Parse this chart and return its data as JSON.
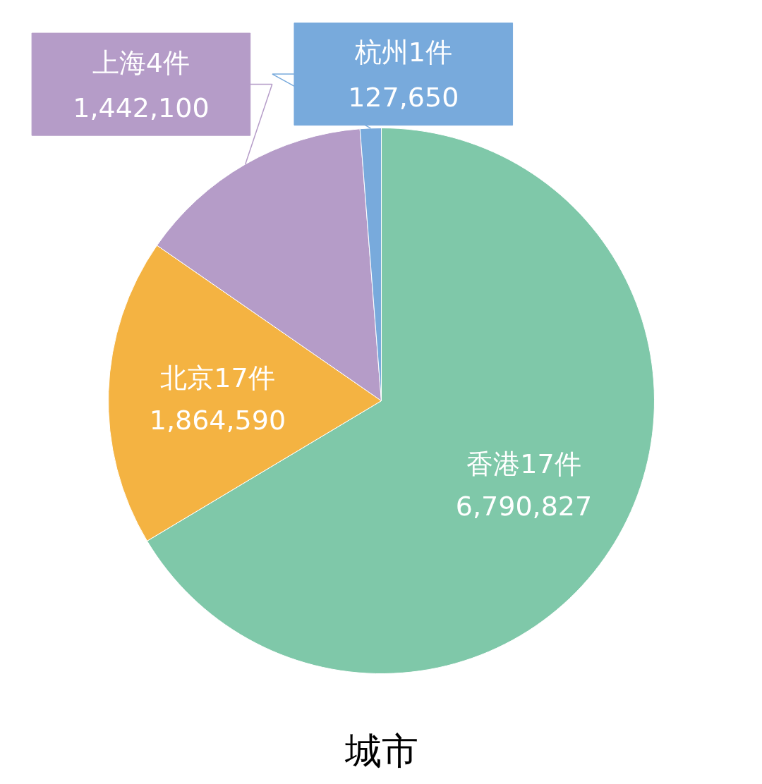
{
  "chart_data": {
    "type": "pie",
    "title": "城市",
    "categories": [
      "香港17件",
      "北京17件",
      "上海4件",
      "杭州1件"
    ],
    "values": [
      6790827,
      1864590,
      1442100,
      127650
    ],
    "value_labels": [
      "6,790,827",
      "1,864,590",
      "1,442,100",
      "127,650"
    ],
    "colors": [
      "#7fc8a9",
      "#f4b342",
      "#b59cc8",
      "#78aadc"
    ]
  }
}
